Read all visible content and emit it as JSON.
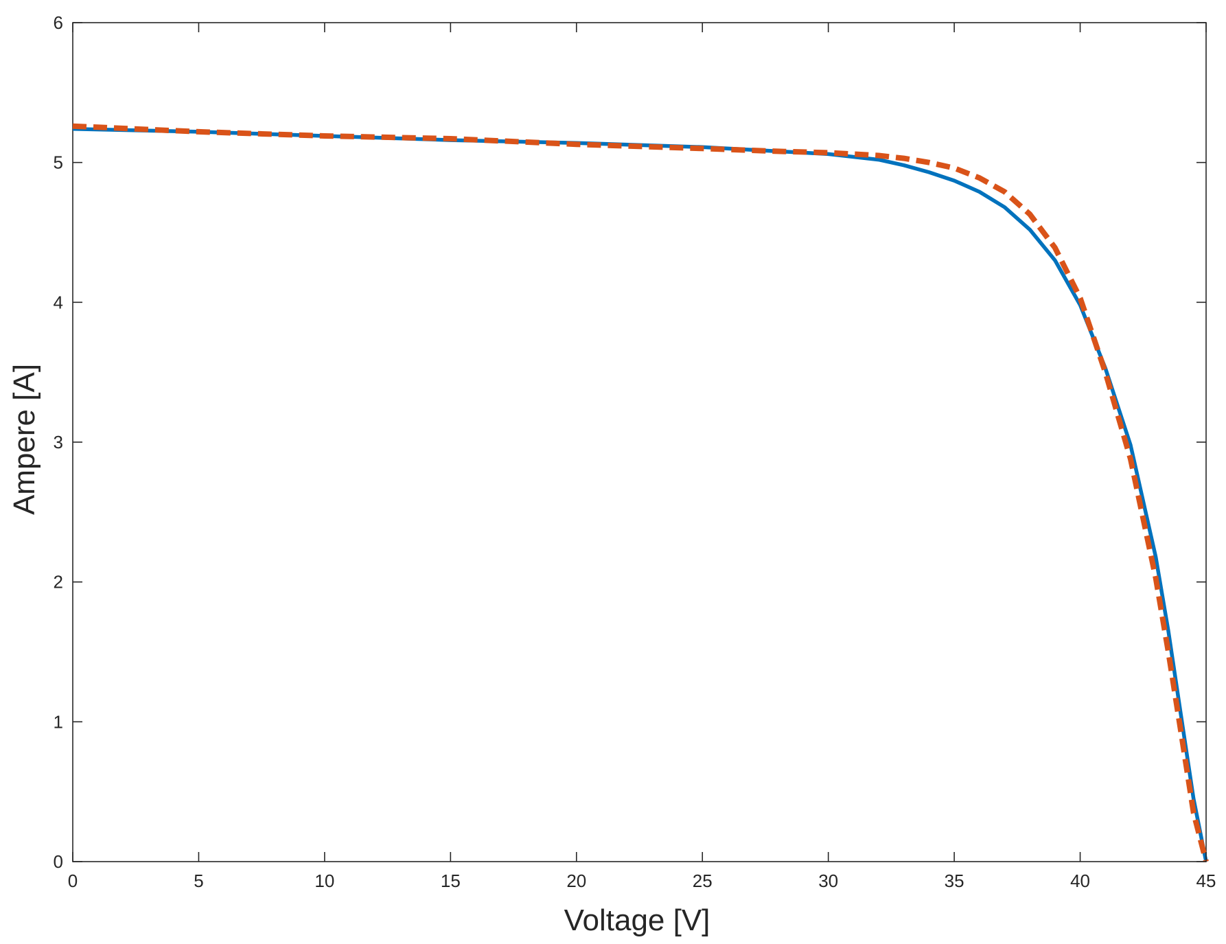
{
  "chart_data": {
    "type": "line",
    "title": "",
    "xlabel": "Voltage [V]",
    "ylabel": "Ampere [A]",
    "xlim": [
      0,
      45
    ],
    "ylim": [
      0,
      6
    ],
    "xticks": [
      0,
      5,
      10,
      15,
      20,
      25,
      30,
      35,
      40,
      45
    ],
    "yticks": [
      0,
      1,
      2,
      3,
      4,
      5,
      6
    ],
    "grid": false,
    "legend": "none",
    "series": [
      {
        "style": "solid",
        "color": "#0072BD",
        "x": [
          0,
          5,
          10,
          15,
          20,
          25,
          28,
          30,
          32,
          33,
          34,
          35,
          36,
          37,
          38,
          39,
          40,
          41,
          42,
          43,
          43.5,
          44,
          44.5,
          45
        ],
        "y": [
          5.24,
          5.22,
          5.19,
          5.16,
          5.14,
          5.11,
          5.08,
          5.06,
          5.02,
          4.98,
          4.93,
          4.87,
          4.79,
          4.68,
          4.52,
          4.3,
          3.98,
          3.53,
          2.98,
          2.18,
          1.65,
          1.05,
          0.45,
          0.0
        ]
      },
      {
        "style": "dashed",
        "color": "#D95319",
        "x": [
          0,
          5,
          10,
          15,
          20,
          25,
          28,
          30,
          32,
          33,
          34,
          35,
          36,
          37,
          38,
          39,
          40,
          41,
          42,
          43,
          43.5,
          44,
          44.5,
          45
        ],
        "y": [
          5.26,
          5.22,
          5.19,
          5.17,
          5.13,
          5.1,
          5.08,
          5.07,
          5.05,
          5.03,
          5.0,
          4.96,
          4.89,
          4.79,
          4.63,
          4.39,
          4.03,
          3.5,
          2.88,
          2.03,
          1.5,
          0.93,
          0.35,
          0.0
        ]
      }
    ]
  }
}
